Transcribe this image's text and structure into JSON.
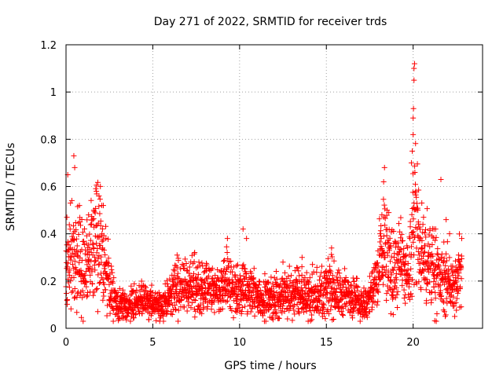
{
  "chart_data": {
    "type": "scatter",
    "title": "Day 271 of 2022, SRMTID for receiver trds",
    "xlabel": "GPS time / hours",
    "ylabel": "SRMTID / TECUs",
    "xlim": [
      0,
      24
    ],
    "ylim": [
      0,
      1.2
    ],
    "x_ticks": [
      0,
      5,
      10,
      15,
      20
    ],
    "y_ticks": [
      0,
      0.2,
      0.4,
      0.6,
      0.8,
      1,
      1.2
    ],
    "x_tick_labels": [
      "0",
      "5",
      "10",
      "15",
      "20"
    ],
    "y_tick_labels": [
      "0",
      "0.2",
      "0.4",
      "0.6",
      "0.8",
      "1",
      "1.2"
    ],
    "grid": true,
    "marker": "+",
    "series": [
      {
        "name": "SRMTID",
        "color": "#ff0000",
        "profile_x": [
          0,
          0.2,
          0.5,
          0.8,
          1.2,
          1.6,
          1.8,
          2.1,
          2.5,
          2.8,
          3.2,
          3.8,
          4.2,
          4.6,
          5.0,
          5.4,
          5.8,
          6.3,
          6.8,
          7.3,
          7.8,
          8.3,
          8.8,
          9.3,
          9.8,
          10.3,
          10.8,
          11.3,
          11.8,
          12.3,
          12.8,
          13.3,
          13.8,
          14.3,
          14.8,
          15.3,
          15.8,
          16.3,
          16.8,
          17.3,
          17.6,
          18.0,
          18.3,
          18.5,
          18.8,
          19.2,
          19.6,
          19.9,
          20.1,
          20.4,
          20.8,
          21.2,
          21.6,
          22.0,
          22.4,
          22.8
        ],
        "profile_y": [
          0.2,
          0.32,
          0.35,
          0.28,
          0.26,
          0.33,
          0.42,
          0.3,
          0.18,
          0.1,
          0.09,
          0.1,
          0.1,
          0.12,
          0.1,
          0.09,
          0.11,
          0.18,
          0.16,
          0.17,
          0.17,
          0.16,
          0.14,
          0.2,
          0.15,
          0.16,
          0.14,
          0.13,
          0.12,
          0.13,
          0.14,
          0.15,
          0.13,
          0.13,
          0.15,
          0.17,
          0.14,
          0.14,
          0.12,
          0.09,
          0.15,
          0.22,
          0.38,
          0.3,
          0.22,
          0.28,
          0.2,
          0.3,
          0.5,
          0.3,
          0.28,
          0.25,
          0.2,
          0.2,
          0.15,
          0.25
        ],
        "peaks": [
          {
            "x": 0.1,
            "y": 0.65
          },
          {
            "x": 0.45,
            "y": 0.73
          },
          {
            "x": 0.5,
            "y": 0.68
          },
          {
            "x": 1.75,
            "y": 0.58
          },
          {
            "x": 1.9,
            "y": 0.56
          },
          {
            "x": 2.15,
            "y": 0.52
          },
          {
            "x": 6.4,
            "y": 0.31
          },
          {
            "x": 9.3,
            "y": 0.38
          },
          {
            "x": 10.2,
            "y": 0.42
          },
          {
            "x": 10.4,
            "y": 0.38
          },
          {
            "x": 12.5,
            "y": 0.28
          },
          {
            "x": 13.6,
            "y": 0.3
          },
          {
            "x": 14.2,
            "y": 0.27
          },
          {
            "x": 15.3,
            "y": 0.34
          },
          {
            "x": 17.5,
            "y": 0.22
          },
          {
            "x": 18.2,
            "y": 0.48
          },
          {
            "x": 18.3,
            "y": 0.62
          },
          {
            "x": 18.35,
            "y": 0.68
          },
          {
            "x": 18.5,
            "y": 0.5
          },
          {
            "x": 18.7,
            "y": 0.35
          },
          {
            "x": 19.9,
            "y": 0.7
          },
          {
            "x": 19.95,
            "y": 0.75
          },
          {
            "x": 20.0,
            "y": 0.82
          },
          {
            "x": 20.0,
            "y": 0.89
          },
          {
            "x": 20.02,
            "y": 0.93
          },
          {
            "x": 20.05,
            "y": 1.05
          },
          {
            "x": 20.05,
            "y": 1.1
          },
          {
            "x": 20.08,
            "y": 1.12
          },
          {
            "x": 20.1,
            "y": 0.66
          },
          {
            "x": 20.15,
            "y": 0.58
          },
          {
            "x": 20.5,
            "y": 0.53
          },
          {
            "x": 20.6,
            "y": 0.47
          },
          {
            "x": 21.6,
            "y": 0.63
          },
          {
            "x": 21.2,
            "y": 0.42
          },
          {
            "x": 22.8,
            "y": 0.38
          },
          {
            "x": 0.05,
            "y": 0.47
          },
          {
            "x": 0.8,
            "y": 0.45
          },
          {
            "x": 1.3,
            "y": 0.48
          },
          {
            "x": 1.6,
            "y": 0.5
          },
          {
            "x": 2.3,
            "y": 0.38
          },
          {
            "x": 18.1,
            "y": 0.4
          },
          {
            "x": 20.3,
            "y": 0.45
          },
          {
            "x": 21.9,
            "y": 0.46
          },
          {
            "x": 22.1,
            "y": 0.4
          }
        ]
      }
    ]
  }
}
